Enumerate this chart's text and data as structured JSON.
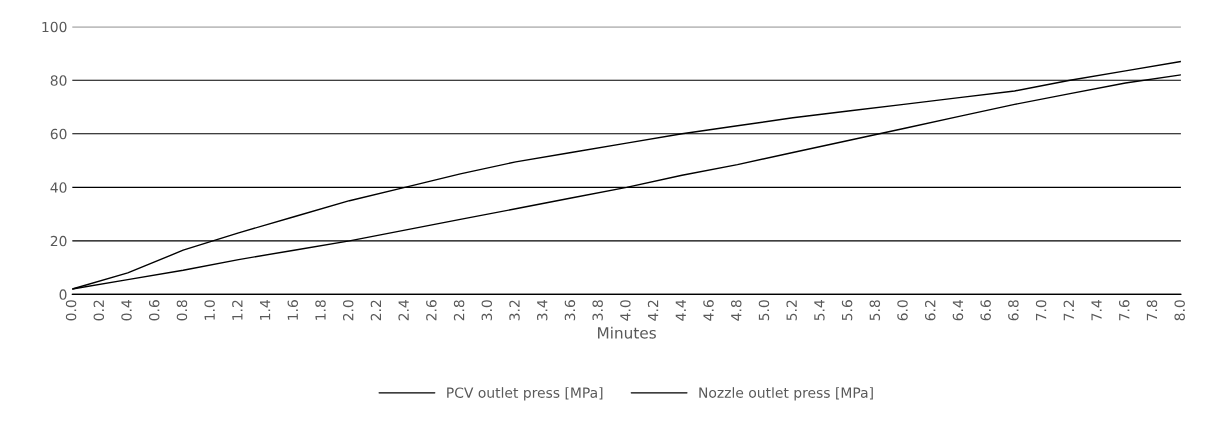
{
  "chart_data": {
    "type": "line",
    "xlabel": "Minutes",
    "x": [
      0,
      0.4,
      0.8,
      1.2,
      1.6,
      2.0,
      2.4,
      2.8,
      3.2,
      3.6,
      4.0,
      4.4,
      4.8,
      5.2,
      5.6,
      6.0,
      6.4,
      6.8,
      7.2,
      7.6,
      8.0
    ],
    "series": [
      {
        "name": "PCV outlet press [MPa]",
        "color": "#000000",
        "values": [
          2,
          8,
          16.5,
          23,
          29,
          35,
          40,
          45,
          49.5,
          53,
          56.5,
          60,
          63,
          66,
          68.5,
          71,
          73.5,
          76,
          80,
          83.5,
          87
        ]
      },
      {
        "name": "Nozzle outlet press [MPa]",
        "color": "#000000",
        "values": [
          2,
          5.5,
          9,
          13,
          16.5,
          20,
          24,
          28,
          32,
          36,
          40,
          44.5,
          48.5,
          53,
          57.5,
          62,
          66.5,
          71,
          75,
          79,
          82
        ]
      }
    ],
    "xlim": [
      0,
      8
    ],
    "xticks": [
      {
        "value": 0,
        "label": "0.0"
      },
      {
        "value": 0.2,
        "label": "0.2"
      },
      {
        "value": 0.4,
        "label": "0.4"
      },
      {
        "value": 0.6,
        "label": "0.6"
      },
      {
        "value": 0.8,
        "label": "0.8"
      },
      {
        "value": 1,
        "label": "1.0"
      },
      {
        "value": 1.2,
        "label": "1.2"
      },
      {
        "value": 1.4,
        "label": "1.4"
      },
      {
        "value": 1.6,
        "label": "1.6"
      },
      {
        "value": 1.8,
        "label": "1.8"
      },
      {
        "value": 2,
        "label": "2.0"
      },
      {
        "value": 2.2,
        "label": "2.2"
      },
      {
        "value": 2.4,
        "label": "2.4"
      },
      {
        "value": 2.6,
        "label": "2.6"
      },
      {
        "value": 2.8,
        "label": "2.8"
      },
      {
        "value": 3,
        "label": "3.0"
      },
      {
        "value": 3.2,
        "label": "3.2"
      },
      {
        "value": 3.4,
        "label": "3.4"
      },
      {
        "value": 3.6,
        "label": "3.6"
      },
      {
        "value": 3.8,
        "label": "3.8"
      },
      {
        "value": 4,
        "label": "4.0"
      },
      {
        "value": 4.2,
        "label": "4.2"
      },
      {
        "value": 4.4,
        "label": "4.4"
      },
      {
        "value": 4.6,
        "label": "4.6"
      },
      {
        "value": 4.8,
        "label": "4.8"
      },
      {
        "value": 5,
        "label": "5.0"
      },
      {
        "value": 5.2,
        "label": "5.2"
      },
      {
        "value": 5.4,
        "label": "5.4"
      },
      {
        "value": 5.6,
        "label": "5.6"
      },
      {
        "value": 5.8,
        "label": "5.8"
      },
      {
        "value": 6,
        "label": "6.0"
      },
      {
        "value": 6.2,
        "label": "6.2"
      },
      {
        "value": 6.4,
        "label": "6.4"
      },
      {
        "value": 6.6,
        "label": "6.6"
      },
      {
        "value": 6.8,
        "label": "6.8"
      },
      {
        "value": 7,
        "label": "7.0"
      },
      {
        "value": 7.2,
        "label": "7.2"
      },
      {
        "value": 7.4,
        "label": "7.4"
      },
      {
        "value": 7.6,
        "label": "7.6"
      },
      {
        "value": 7.8,
        "label": "7.8"
      },
      {
        "value": 8,
        "label": "8.0"
      }
    ],
    "ylim": [
      0,
      100
    ],
    "yticks": [
      0,
      20,
      40,
      60,
      80,
      100
    ],
    "grid": "y",
    "legend": "bottom",
    "marker": "none",
    "line_style": "solid"
  }
}
